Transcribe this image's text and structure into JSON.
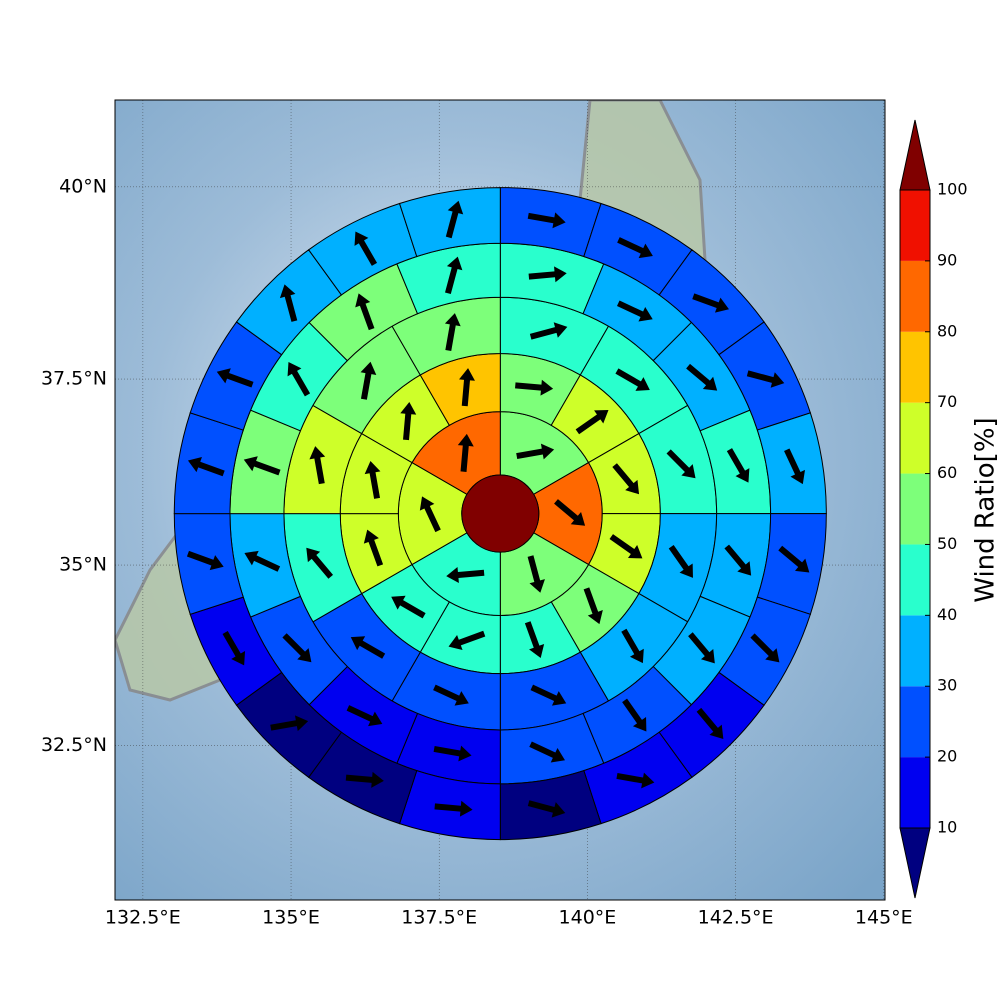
{
  "chart_data": {
    "type": "polar_sector_map",
    "projection": "mercator",
    "xlim": [
      132.03,
      145.02
    ],
    "ylim": [
      30.3,
      41.1
    ],
    "xticks": [
      {
        "value": 132.5,
        "label": "132.5°E"
      },
      {
        "value": 135,
        "label": "135°E"
      },
      {
        "value": 137.5,
        "label": "137.5°E"
      },
      {
        "value": 140,
        "label": "140°E"
      },
      {
        "value": 142.5,
        "label": "142.5°E"
      },
      {
        "value": 145,
        "label": "145°E"
      }
    ],
    "yticks": [
      {
        "value": 32.5,
        "label": "32.5°N"
      },
      {
        "value": 35,
        "label": "35°N"
      },
      {
        "value": 37.5,
        "label": "37.5°N"
      },
      {
        "value": 40,
        "label": "40°N"
      }
    ],
    "grid": true,
    "center": [
      138.53,
      35.7
    ],
    "center_value": 100,
    "radii": [
      0.65,
      1.72,
      2.7,
      3.65,
      4.56,
      5.5
    ],
    "rings": [
      {
        "values": [
          55,
          85,
          55,
          45,
          65,
          85
        ],
        "directions": [
          80,
          130,
          165,
          265,
          335,
          5
        ]
      },
      {
        "values": [
          55,
          65,
          65,
          65,
          55,
          45,
          45,
          45,
          65,
          65,
          65,
          75
        ],
        "directions": [
          95,
          55,
          140,
          125,
          160,
          160,
          250,
          300,
          340,
          350,
          5,
          5
        ]
      },
      {
        "values": [
          45,
          45,
          45,
          35,
          35,
          25,
          25,
          25,
          45,
          65,
          55,
          55
        ],
        "directions": [
          75,
          120,
          135,
          145,
          150,
          115,
          115,
          300,
          320,
          350,
          10,
          10
        ]
      },
      {
        "values": [
          45,
          35,
          35,
          45,
          35,
          35,
          25,
          25,
          15,
          15,
          25,
          35,
          55,
          45,
          55,
          45
        ],
        "directions": [
          85,
          115,
          130,
          150,
          140,
          140,
          145,
          115,
          100,
          115,
          135,
          295,
          290,
          330,
          340,
          15
        ]
      },
      {
        "values": [
          25,
          25,
          25,
          25,
          35,
          25,
          25,
          15,
          15,
          5,
          15,
          5,
          5,
          15,
          25,
          25,
          25,
          35,
          35,
          35
        ],
        "directions": [
          100,
          115,
          110,
          105,
          155,
          130,
          135,
          140,
          100,
          105,
          95,
          95,
          80,
          150,
          110,
          290,
          290,
          345,
          330,
          15
        ]
      }
    ],
    "colorbar": {
      "label": "Wind Ratio[%]",
      "ticks": [
        10,
        20,
        30,
        40,
        50,
        60,
        70,
        80,
        90,
        100
      ],
      "colors": [
        "#000080",
        "#0000f0",
        "#0050ff",
        "#00b0ff",
        "#29ffcd",
        "#7dff7a",
        "#ceff29",
        "#ffc400",
        "#ff6800",
        "#f01000",
        "#800000"
      ]
    }
  }
}
